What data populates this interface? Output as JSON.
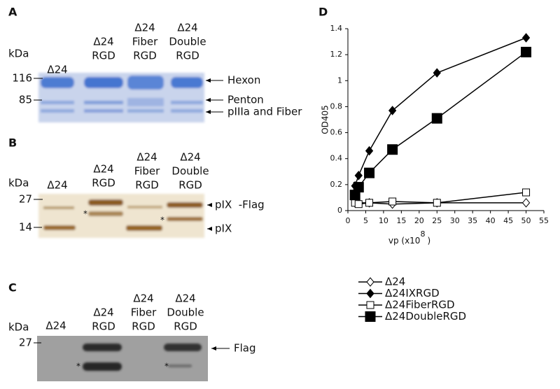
{
  "panels": [
    {
      "letter": "A",
      "unit": "kDa",
      "lanes": [
        [
          "Δ24"
        ],
        [
          "Δ24",
          "RGD"
        ],
        [
          "Δ24",
          "Fiber",
          "RGD"
        ],
        [
          "Δ24",
          "Double",
          "RGD"
        ]
      ],
      "markers": [
        116,
        85
      ],
      "bands": [
        "Hexon",
        "Penton",
        "pIIIa and Fiber"
      ]
    },
    {
      "letter": "B",
      "unit": "kDa",
      "lanes": [
        [
          "Δ24"
        ],
        [
          "Δ24",
          "RGD"
        ],
        [
          "Δ24",
          "Fiber",
          "RGD"
        ],
        [
          "Δ24",
          "Double",
          "RGD"
        ]
      ],
      "markers": [
        27,
        14
      ],
      "bands": [
        "pIX  -Flag",
        "pIX"
      ],
      "asterisks": [
        "*",
        "*"
      ]
    },
    {
      "letter": "C",
      "unit": "kDa",
      "lanes": [
        [
          "Δ24"
        ],
        [
          "Δ24",
          "RGD"
        ],
        [
          "Δ24",
          "Fiber",
          "RGD"
        ],
        [
          "Δ24",
          "Double",
          "RGD"
        ]
      ],
      "markers": [
        27
      ],
      "bands": [
        "Flag"
      ],
      "asterisks": [
        "*",
        "*"
      ]
    }
  ],
  "chart_data": {
    "type": "line",
    "letter": "D",
    "x": [
      2,
      3,
      6,
      12.5,
      25,
      50
    ],
    "xlabel": "vp (x10",
    "xlabel_sup": "8",
    "xlabel_end": ")",
    "ylabel": "OD405",
    "xlim": [
      0,
      55
    ],
    "xticks": [
      0,
      5,
      10,
      15,
      20,
      25,
      30,
      35,
      40,
      45,
      50,
      55
    ],
    "ylim": [
      0,
      1.4
    ],
    "yticks": [
      0,
      0.2,
      0.4,
      0.6,
      0.8,
      1,
      1.2,
      1.4
    ],
    "legend": "bottom",
    "series": [
      {
        "name": "Δ24",
        "color": "#000000",
        "marker": "diamond-open",
        "values": [
          0.06,
          0.06,
          0.06,
          0.05,
          0.06,
          0.06
        ]
      },
      {
        "name": "Δ24IXRGD",
        "color": "#000000",
        "marker": "diamond-filled",
        "values": [
          0.19,
          0.27,
          0.46,
          0.77,
          1.06,
          1.33
        ]
      },
      {
        "name": "Δ24FiberRGD",
        "color": "#000000",
        "marker": "square-open",
        "values": [
          0.06,
          0.05,
          0.06,
          0.07,
          0.06,
          0.14
        ]
      },
      {
        "name": "Δ24DoubleRGD",
        "color": "#000000",
        "marker": "square-filled",
        "values": [
          0.12,
          0.18,
          0.29,
          0.47,
          0.71,
          1.22
        ]
      }
    ]
  }
}
